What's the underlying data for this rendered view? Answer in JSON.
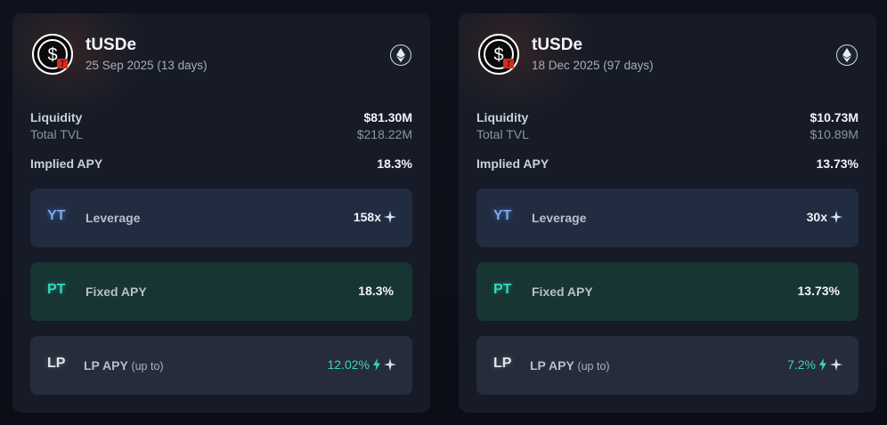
{
  "cards": [
    {
      "token": "tUSDe",
      "maturity": "25 Sep 2025 (13 days)",
      "liquidity_label": "Liquidity",
      "liquidity_value": "$81.30M",
      "tvl_label": "Total TVL",
      "tvl_value": "$218.22M",
      "implied_apy_label": "Implied APY",
      "implied_apy_value": "18.3%",
      "yt": {
        "tag": "YT",
        "label": "Leverage",
        "value": "158x"
      },
      "pt": {
        "tag": "PT",
        "label": "Fixed APY",
        "value": "18.3%"
      },
      "lp": {
        "tag": "LP",
        "label": "LP APY",
        "sublabel": "(up to)",
        "value": "12.02%"
      }
    },
    {
      "token": "tUSDe",
      "maturity": "18 Dec 2025 (97 days)",
      "liquidity_label": "Liquidity",
      "liquidity_value": "$10.73M",
      "tvl_label": "Total TVL",
      "tvl_value": "$10.89M",
      "implied_apy_label": "Implied APY",
      "implied_apy_value": "13.73%",
      "yt": {
        "tag": "YT",
        "label": "Leverage",
        "value": "30x"
      },
      "pt": {
        "tag": "PT",
        "label": "Fixed APY",
        "value": "13.73%"
      },
      "lp": {
        "tag": "LP",
        "label": "LP APY",
        "sublabel": "(up to)",
        "value": "7.2%"
      }
    }
  ],
  "icons": {
    "token_logo": "tusde-logo-icon",
    "chain": "ethereum-icon",
    "boost": "sparkle-icon",
    "bolt": "lightning-bolt-icon"
  },
  "colors": {
    "card_bg": "#161b27",
    "yt_box": "#222c40",
    "pt_box": "#173533",
    "lp_box": "#262c3a",
    "yt_accent": "#79a9f2",
    "pt_accent": "#35d8b8",
    "lp_value": "#3bd6b7"
  }
}
